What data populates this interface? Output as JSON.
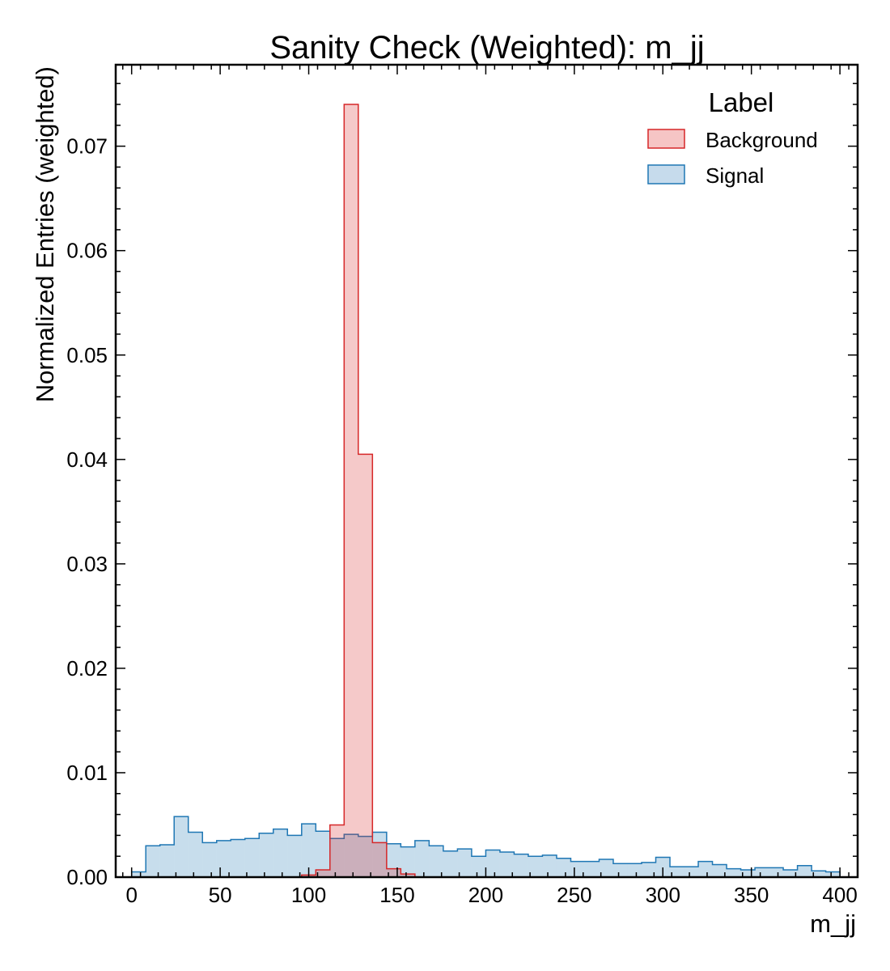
{
  "chart_data": {
    "type": "histogram",
    "title": "Sanity Check (Weighted): m_jj",
    "xlabel": "m_jj",
    "ylabel": "Normalized Entries (weighted)",
    "xlim": [
      -9,
      410
    ],
    "ylim": [
      0,
      0.0778
    ],
    "xticks": [
      "0",
      "50",
      "100",
      "150",
      "200",
      "250",
      "300",
      "350",
      "400"
    ],
    "yticks": [
      "0.00",
      "0.01",
      "0.02",
      "0.03",
      "0.04",
      "0.05",
      "0.06",
      "0.07"
    ],
    "grid": false,
    "legend": {
      "title": "Label",
      "position": "top-right"
    },
    "bin_edges": [
      0,
      8,
      16,
      24,
      32,
      40,
      48,
      56,
      64,
      72,
      80,
      88,
      96,
      104,
      112,
      120,
      128,
      136,
      144,
      152,
      160,
      168,
      176,
      184,
      192,
      200,
      208,
      216,
      224,
      232,
      240,
      248,
      256,
      264,
      272,
      280,
      288,
      296,
      304,
      312,
      320,
      328,
      336,
      344,
      352,
      360,
      368,
      376,
      384,
      392,
      400
    ],
    "series": [
      {
        "name": "Signal",
        "color": "#1f77b4",
        "fill": "#c6dbec",
        "values": [
          0.0005,
          0.003,
          0.0031,
          0.0058,
          0.0043,
          0.0033,
          0.0035,
          0.0036,
          0.0037,
          0.0042,
          0.0046,
          0.004,
          0.0051,
          0.0044,
          0.0037,
          0.0041,
          0.0039,
          0.0043,
          0.0032,
          0.0029,
          0.0035,
          0.003,
          0.0025,
          0.0027,
          0.002,
          0.0026,
          0.0024,
          0.0022,
          0.002,
          0.0021,
          0.0018,
          0.0015,
          0.0015,
          0.0017,
          0.0013,
          0.0013,
          0.0014,
          0.0019,
          0.001,
          0.001,
          0.0015,
          0.0012,
          0.0008,
          0.0007,
          0.0009,
          0.0009,
          0.0007,
          0.0011,
          0.0006,
          0.0005
        ]
      },
      {
        "name": "Background",
        "color": "#d62728",
        "fill": "#f6c5c5",
        "values": [
          0,
          0,
          0,
          0,
          0,
          0,
          0,
          0,
          0,
          0,
          0,
          0,
          0.0002,
          0.0007,
          0.005,
          0.074,
          0.0405,
          0.0033,
          0.0008,
          0.0003,
          0,
          0,
          0,
          0,
          0,
          0,
          0,
          0,
          0,
          0,
          0,
          0,
          0,
          0,
          0,
          0,
          0,
          0,
          0,
          0,
          0,
          0,
          0,
          0,
          0,
          0,
          0,
          0,
          0,
          0
        ]
      }
    ]
  }
}
